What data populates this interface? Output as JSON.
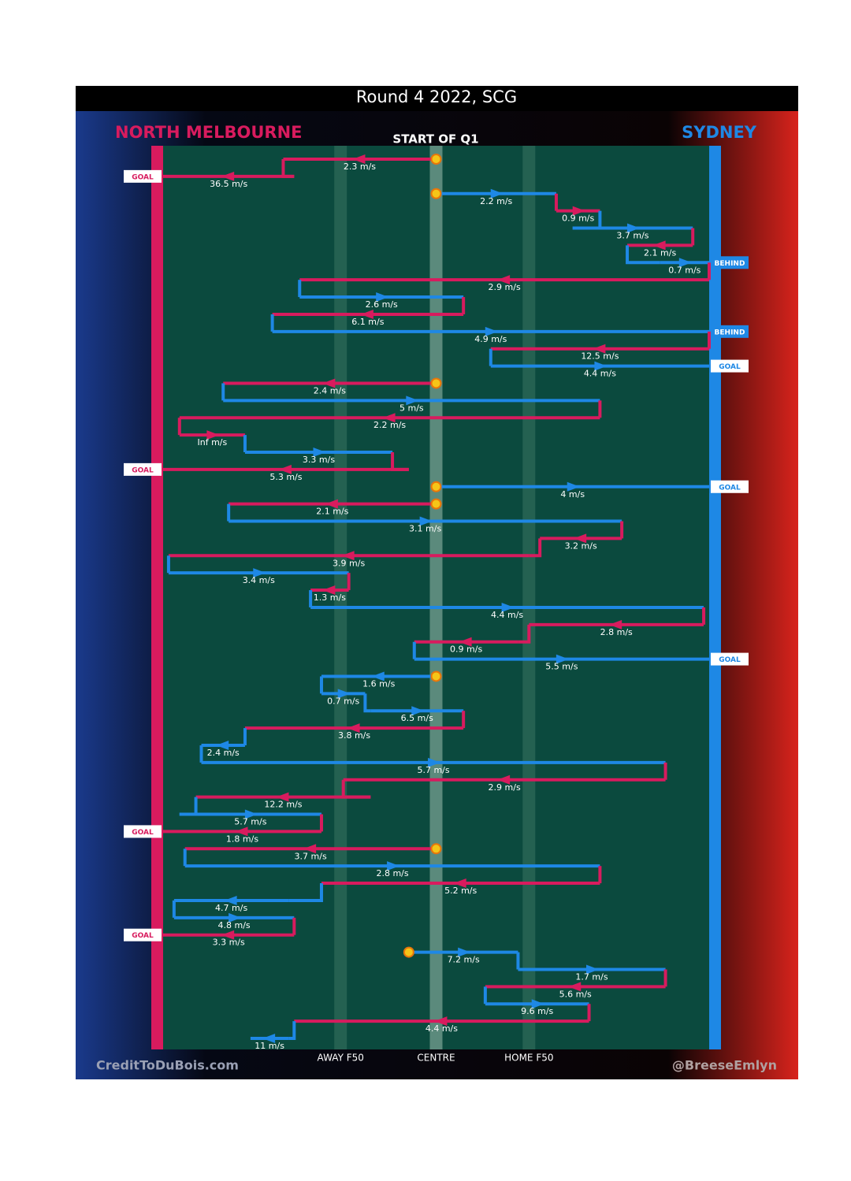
{
  "chart_data": {
    "type": "chain",
    "title": "Round 4 2022, SCG",
    "subtitle": "START OF Q1",
    "teams": [
      {
        "name": "NORTH MELBOURNE",
        "color": "#d81b5e"
      },
      {
        "name": "SYDNEY",
        "color": "#1e88e5"
      }
    ],
    "credit_left": "CreditToDuBois.com",
    "credit_right": "@BreeseEmlyn",
    "xlim": [
      0,
      100
    ],
    "xticks": [
      {
        "value": 32.5,
        "label": "AWAY F50"
      },
      {
        "value": 50,
        "label": "CENTRE"
      },
      {
        "value": 67,
        "label": "HOME F50"
      }
    ],
    "moves": [
      {
        "color": "#d81b5e",
        "from": 50,
        "to": 22,
        "label": "2.3 m/s"
      },
      {
        "color": "#d81b5e",
        "from": 24,
        "to": 0,
        "label": "36.5 m/s",
        "outcome": "GOAL"
      },
      {
        "color": "#1e88e5",
        "from": 50,
        "to": 72,
        "label": "2.2 m/s"
      },
      {
        "color": "#d81b5e",
        "from": 72,
        "to": 80,
        "label": "0.9 m/s"
      },
      {
        "color": "#1e88e5",
        "from": 75,
        "to": 97,
        "label": "3.7 m/s"
      },
      {
        "color": "#d81b5e",
        "from": 97,
        "to": 85,
        "label": "2.1 m/s"
      },
      {
        "color": "#1e88e5",
        "from": 91,
        "to": 100,
        "label": "0.7 m/s",
        "outcome": "BEHIND"
      },
      {
        "color": "#d81b5e",
        "from": 100,
        "to": 25,
        "label": "2.9 m/s"
      },
      {
        "color": "#1e88e5",
        "from": 25,
        "to": 55,
        "label": "2.6 m/s"
      },
      {
        "color": "#d81b5e",
        "from": 55,
        "to": 20,
        "label": "6.1 m/s"
      },
      {
        "color": "#1e88e5",
        "from": 20,
        "to": 100,
        "label": "4.9 m/s",
        "outcome": "BEHIND"
      },
      {
        "color": "#d81b5e",
        "from": 100,
        "to": 60,
        "label": "12.5 m/s"
      },
      {
        "color": "#1e88e5",
        "from": 60,
        "to": 100,
        "label": "4.4 m/s",
        "outcome": "GOAL"
      },
      {
        "color": "#d81b5e",
        "from": 50,
        "to": 11,
        "label": "2.4 m/s"
      },
      {
        "color": "#1e88e5",
        "from": 11,
        "to": 80,
        "label": "5 m/s"
      },
      {
        "color": "#d81b5e",
        "from": 80,
        "to": 3,
        "label": "2.2 m/s"
      },
      {
        "color": "#d81b5e",
        "from": 3,
        "to": 15,
        "label": "Inf m/s"
      },
      {
        "color": "#1e88e5",
        "from": 15,
        "to": 42,
        "label": "3.3 m/s"
      },
      {
        "color": "#d81b5e",
        "from": 45,
        "to": 0,
        "label": "5.3 m/s",
        "outcome": "GOAL"
      },
      {
        "color": "#1e88e5",
        "from": 50,
        "to": 100,
        "label": "4 m/s",
        "outcome": "GOAL"
      },
      {
        "color": "#d81b5e",
        "from": 50,
        "to": 12,
        "label": "2.1 m/s"
      },
      {
        "color": "#1e88e5",
        "from": 12,
        "to": 84,
        "label": "3.1 m/s"
      },
      {
        "color": "#d81b5e",
        "from": 84,
        "to": 69,
        "label": "3.2 m/s"
      },
      {
        "color": "#d81b5e",
        "from": 67,
        "to": 1,
        "label": "3.9 m/s"
      },
      {
        "color": "#1e88e5",
        "from": 1,
        "to": 34,
        "label": "3.4 m/s"
      },
      {
        "color": "#d81b5e",
        "from": 34,
        "to": 27,
        "label": "1.3 m/s"
      },
      {
        "color": "#1e88e5",
        "from": 27,
        "to": 99,
        "label": "4.4 m/s"
      },
      {
        "color": "#d81b5e",
        "from": 99,
        "to": 67,
        "label": "2.8 m/s"
      },
      {
        "color": "#d81b5e",
        "from": 65,
        "to": 46,
        "label": "0.9 m/s"
      },
      {
        "color": "#1e88e5",
        "from": 46,
        "to": 100,
        "label": "5.5 m/s",
        "outcome": "GOAL"
      },
      {
        "color": "#1e88e5",
        "from": 50,
        "to": 29,
        "label": "1.6 m/s"
      },
      {
        "color": "#1e88e5",
        "from": 29,
        "to": 37,
        "label": "0.7 m/s"
      },
      {
        "color": "#1e88e5",
        "from": 38,
        "to": 55,
        "label": "6.5 m/s"
      },
      {
        "color": "#d81b5e",
        "from": 55,
        "to": 15,
        "label": "3.8 m/s"
      },
      {
        "color": "#1e88e5",
        "from": 15,
        "to": 7,
        "label": "2.4 m/s"
      },
      {
        "color": "#1e88e5",
        "from": 7,
        "to": 92,
        "label": "5.7 m/s"
      },
      {
        "color": "#d81b5e",
        "from": 92,
        "to": 33,
        "label": "2.9 m/s"
      },
      {
        "color": "#d81b5e",
        "from": 38,
        "to": 6,
        "label": "12.2 m/s"
      },
      {
        "color": "#1e88e5",
        "from": 3,
        "to": 29,
        "label": "5.7 m/s"
      },
      {
        "color": "#d81b5e",
        "from": 29,
        "to": 0,
        "label": "1.8 m/s",
        "outcome": "GOAL"
      },
      {
        "color": "#d81b5e",
        "from": 50,
        "to": 4,
        "label": "3.7 m/s"
      },
      {
        "color": "#1e88e5",
        "from": 4,
        "to": 80,
        "label": "2.8 m/s"
      },
      {
        "color": "#d81b5e",
        "from": 80,
        "to": 29,
        "label": "5.2 m/s"
      },
      {
        "color": "#1e88e5",
        "from": 23,
        "to": 2,
        "label": "4.7 m/s"
      },
      {
        "color": "#1e88e5",
        "from": 2,
        "to": 24,
        "label": "4.8 m/s"
      },
      {
        "color": "#d81b5e",
        "from": 24,
        "to": 0,
        "label": "3.3 m/s",
        "outcome": "GOAL"
      },
      {
        "color": "#1e88e5",
        "from": 45,
        "to": 65,
        "label": "7.2 m/s"
      },
      {
        "color": "#1e88e5",
        "from": 65,
        "to": 92,
        "label": "1.7 m/s"
      },
      {
        "color": "#d81b5e",
        "from": 92,
        "to": 59,
        "label": "5.6 m/s"
      },
      {
        "color": "#1e88e5",
        "from": 59,
        "to": 78,
        "label": "9.6 m/s"
      },
      {
        "color": "#d81b5e",
        "from": 78,
        "to": 24,
        "label": "4.4 m/s"
      },
      {
        "color": "#1e88e5",
        "from": 23,
        "to": 16,
        "label": "11 m/s"
      }
    ]
  }
}
